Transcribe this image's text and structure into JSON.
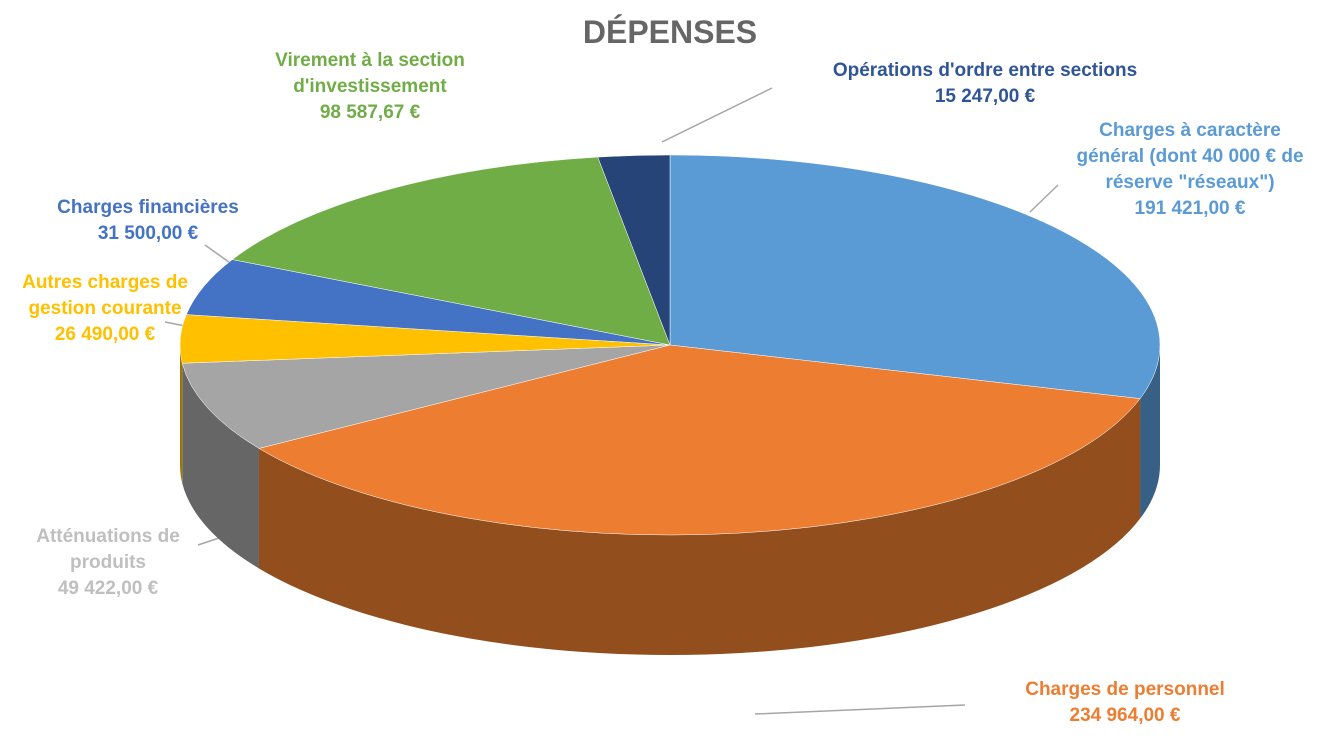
{
  "chart_data": {
    "type": "pie",
    "title": "DÉPENSES",
    "categories": [
      "Charges à caractère général (dont 40 000 € de réserve \"réseaux\")",
      "Charges de personnel",
      "Atténuations de produits",
      "Autres charges de gestion courante",
      "Charges financières",
      "Virement à la section d'investissement",
      "Opérations d'ordre entre sections"
    ],
    "values": [
      191421,
      234964,
      49422,
      26490,
      31500,
      98587.67,
      15247
    ],
    "value_labels": [
      "191 421,00 €",
      "234 964,00 €",
      "49 422,00 €",
      "26 490,00 €",
      "31 500,00 €",
      "98 587,67 €",
      "15 247,00 €"
    ],
    "colors": [
      "#5b9bd5",
      "#ed7d31",
      "#a5a5a5",
      "#ffc000",
      "#4472c4",
      "#70ad47",
      "#264478"
    ]
  }
}
